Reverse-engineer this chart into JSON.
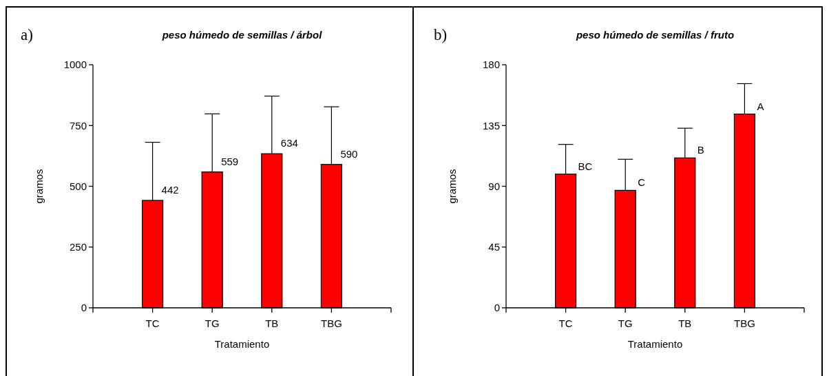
{
  "chart_data": [
    {
      "type": "bar",
      "title": "peso húmedo de semillas / árbol",
      "xlabel": "Tratamiento",
      "ylabel": "gramos",
      "categories": [
        "TC",
        "TG",
        "TB",
        "TBG"
      ],
      "values": [
        442,
        559,
        634,
        590
      ],
      "errors": [
        [
          442,
          681
        ],
        [
          559,
          798
        ],
        [
          634,
          871
        ],
        [
          590,
          827
        ]
      ],
      "color": "#ff0000",
      "ylim": [
        0,
        1000
      ],
      "yticks": [
        0,
        250,
        500,
        750,
        1000
      ],
      "data_labels": true,
      "annotations": [
        "a)"
      ]
    },
    {
      "type": "bar",
      "title": "peso húmedo de semillas / fruto",
      "xlabel": "Tratamiento",
      "ylabel": "gramos",
      "categories": [
        "TC",
        "TG",
        "TB",
        "TBG"
      ],
      "values": [
        99,
        87,
        111,
        143.5
      ],
      "errors": [
        [
          99,
          121
        ],
        [
          87,
          110
        ],
        [
          111,
          133
        ],
        [
          143.5,
          166
        ]
      ],
      "color": "#ff0000",
      "ylim": [
        0,
        180
      ],
      "yticks": [
        0,
        45,
        90,
        135,
        180
      ],
      "annotations": [
        "b)",
        {
          "text": "BC",
          "x": "TC",
          "y": 99
        },
        {
          "text": "C",
          "x": "TG",
          "y": 87
        },
        {
          "text": "B",
          "x": "TB",
          "y": 111
        },
        {
          "text": "A",
          "x": "TBG",
          "y": 143.5
        }
      ]
    }
  ]
}
